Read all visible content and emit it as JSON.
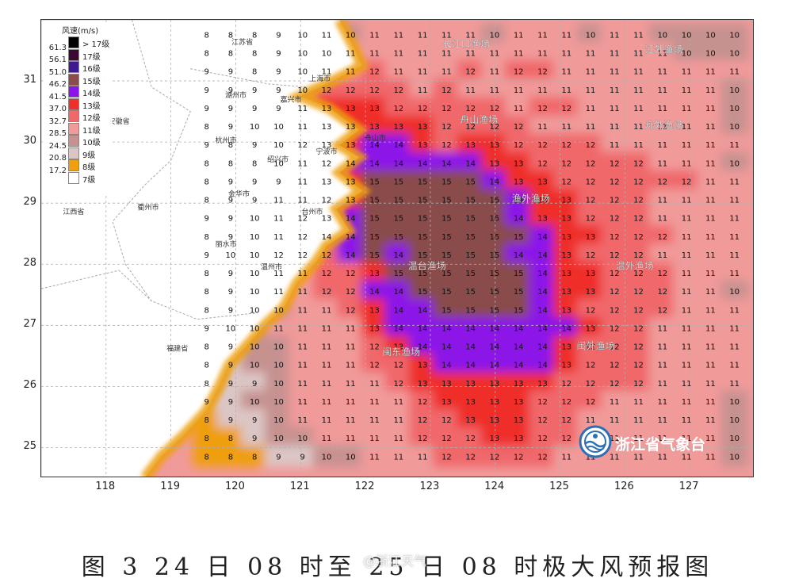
{
  "map": {
    "lon_range": [
      117.0,
      128.0
    ],
    "lat_range": [
      24.5,
      32.0
    ],
    "lon_ticks": [
      "118",
      "119",
      "120",
      "121",
      "122",
      "123",
      "124",
      "125",
      "126",
      "127"
    ],
    "lat_ticks": [
      "25",
      "26",
      "27",
      "28",
      "29",
      "30",
      "31"
    ],
    "grid": true
  },
  "legend": {
    "title": "风速(m/s)",
    "items": [
      {
        "value": "",
        "label": "> 17级",
        "color": "#000000"
      },
      {
        "value": "61.3",
        "label": "17级",
        "color": "#3a0a33"
      },
      {
        "value": "56.1",
        "label": "16级",
        "color": "#3d1a8f"
      },
      {
        "value": "51.0",
        "label": "15级",
        "color": "#8a4c4c"
      },
      {
        "value": "46.2",
        "label": "14级",
        "color": "#8c14e8"
      },
      {
        "value": "41.5",
        "label": "13级",
        "color": "#ef2f2c"
      },
      {
        "value": "37.0",
        "label": "12级",
        "color": "#f0686a"
      },
      {
        "value": "32.7",
        "label": "11级",
        "color": "#f19a9a"
      },
      {
        "value": "28.5",
        "label": "10级",
        "color": "#c69290"
      },
      {
        "value": "24.5",
        "label": "9级",
        "color": "#dcc6c5"
      },
      {
        "value": "20.8",
        "label": "8级",
        "color": "#ef9f10"
      },
      {
        "value": "17.2",
        "label": "7级",
        "color": "#ffffff"
      }
    ]
  },
  "places": [
    {
      "name": "江苏省",
      "lon": 120.1,
      "lat": 31.6
    },
    {
      "name": "上海市",
      "lon": 121.3,
      "lat": 31.0
    },
    {
      "name": "湖州市",
      "lon": 120.0,
      "lat": 30.73
    },
    {
      "name": "嘉兴市",
      "lon": 120.85,
      "lat": 30.66
    },
    {
      "name": "安徽省",
      "lon": 118.2,
      "lat": 30.3
    },
    {
      "name": "杭州市",
      "lon": 119.85,
      "lat": 29.99
    },
    {
      "name": "舟山市",
      "lon": 122.15,
      "lat": 30.03
    },
    {
      "name": "宁波市",
      "lon": 121.4,
      "lat": 29.81
    },
    {
      "name": "绍兴市",
      "lon": 120.65,
      "lat": 29.68
    },
    {
      "name": "金华市",
      "lon": 120.05,
      "lat": 29.11
    },
    {
      "name": "衢州市",
      "lon": 118.65,
      "lat": 28.89
    },
    {
      "name": "台州市",
      "lon": 121.18,
      "lat": 28.82
    },
    {
      "name": "江西省",
      "lon": 117.5,
      "lat": 28.82
    },
    {
      "name": "丽水市",
      "lon": 119.85,
      "lat": 28.29
    },
    {
      "name": "温州市",
      "lon": 120.55,
      "lat": 27.92
    },
    {
      "name": "福建省",
      "lon": 119.1,
      "lat": 26.58
    }
  ],
  "fishing_grounds": [
    {
      "name": "长江口渔场",
      "lon": 123.55,
      "lat": 31.55
    },
    {
      "name": "江外渔场",
      "lon": 126.6,
      "lat": 31.46
    },
    {
      "name": "舟山渔场",
      "lon": 123.75,
      "lat": 30.31
    },
    {
      "name": "舟外渔场",
      "lon": 126.6,
      "lat": 30.22
    },
    {
      "name": "渔外渔场",
      "lon": 124.55,
      "lat": 29.02
    },
    {
      "name": "温台渔场",
      "lon": 122.95,
      "lat": 27.92
    },
    {
      "name": "温外渔场",
      "lon": 126.15,
      "lat": 27.92
    },
    {
      "name": "闽东渔场",
      "lon": 122.55,
      "lat": 26.51
    },
    {
      "name": "闽外渔场",
      "lon": 125.55,
      "lat": 26.61
    }
  ],
  "wind_grid": {
    "lon_start": 119.55,
    "lon_step": 0.37,
    "lat_start": 31.76,
    "lat_step": -0.3,
    "rows": [
      [
        8,
        8,
        8,
        9,
        10,
        11,
        10,
        11,
        11,
        11,
        11,
        11,
        10,
        11,
        11,
        11,
        10,
        11,
        11,
        10,
        10,
        10,
        10
      ],
      [
        8,
        8,
        8,
        9,
        10,
        10,
        11,
        11,
        11,
        11,
        11,
        11,
        11,
        11,
        11,
        11,
        11,
        11,
        11,
        11,
        10,
        10,
        10
      ],
      [
        9,
        9,
        8,
        9,
        10,
        11,
        11,
        12,
        11,
        11,
        11,
        12,
        11,
        12,
        12,
        11,
        11,
        11,
        11,
        11,
        11,
        11,
        11
      ],
      [
        9,
        9,
        9,
        9,
        10,
        12,
        12,
        12,
        12,
        11,
        12,
        11,
        11,
        11,
        11,
        11,
        11,
        11,
        11,
        11,
        11,
        11,
        10
      ],
      [
        9,
        9,
        9,
        9,
        11,
        13,
        13,
        13,
        12,
        12,
        12,
        12,
        12,
        11,
        12,
        12,
        11,
        11,
        11,
        11,
        11,
        11,
        10
      ],
      [
        8,
        9,
        10,
        10,
        11,
        13,
        13,
        13,
        13,
        13,
        12,
        12,
        12,
        12,
        11,
        11,
        11,
        11,
        11,
        11,
        11,
        11,
        10
      ],
      [
        9,
        8,
        9,
        10,
        12,
        13,
        13,
        14,
        14,
        13,
        12,
        13,
        13,
        12,
        12,
        12,
        12,
        11,
        11,
        11,
        11,
        11,
        11
      ],
      [
        8,
        8,
        8,
        10,
        11,
        12,
        14,
        14,
        14,
        14,
        14,
        14,
        13,
        13,
        12,
        12,
        12,
        12,
        12,
        11,
        11,
        11,
        10
      ],
      [
        8,
        9,
        9,
        9,
        11,
        13,
        13,
        15,
        15,
        15,
        15,
        15,
        14,
        13,
        13,
        12,
        12,
        12,
        12,
        12,
        12,
        11,
        11
      ],
      [
        8,
        9,
        9,
        11,
        11,
        12,
        13,
        15,
        15,
        15,
        15,
        15,
        15,
        14,
        13,
        13,
        12,
        12,
        12,
        11,
        11,
        11,
        11
      ],
      [
        9,
        9,
        10,
        11,
        12,
        13,
        14,
        15,
        15,
        15,
        15,
        15,
        15,
        14,
        13,
        13,
        12,
        12,
        12,
        11,
        11,
        11,
        11
      ],
      [
        8,
        9,
        10,
        11,
        12,
        14,
        14,
        15,
        15,
        15,
        15,
        15,
        15,
        15,
        14,
        13,
        13,
        12,
        12,
        12,
        11,
        11,
        11
      ],
      [
        9,
        10,
        10,
        12,
        12,
        12,
        14,
        15,
        14,
        15,
        15,
        15,
        15,
        14,
        14,
        13,
        12,
        12,
        12,
        11,
        11,
        11,
        11
      ],
      [
        8,
        9,
        10,
        11,
        11,
        12,
        12,
        13,
        15,
        15,
        15,
        15,
        15,
        15,
        14,
        13,
        13,
        12,
        12,
        12,
        11,
        11,
        11
      ],
      [
        8,
        9,
        10,
        11,
        11,
        12,
        12,
        14,
        14,
        15,
        15,
        15,
        15,
        15,
        14,
        13,
        13,
        12,
        12,
        12,
        11,
        11,
        10
      ],
      [
        8,
        9,
        10,
        10,
        11,
        11,
        12,
        13,
        14,
        14,
        15,
        15,
        15,
        15,
        14,
        13,
        12,
        12,
        12,
        12,
        11,
        11,
        11
      ],
      [
        9,
        10,
        10,
        11,
        11,
        11,
        11,
        13,
        14,
        14,
        14,
        14,
        14,
        14,
        14,
        14,
        13,
        12,
        12,
        11,
        11,
        11,
        11
      ],
      [
        8,
        9,
        10,
        10,
        11,
        11,
        11,
        12,
        13,
        14,
        14,
        14,
        14,
        14,
        14,
        13,
        12,
        12,
        12,
        11,
        11,
        11,
        11
      ],
      [
        8,
        9,
        10,
        10,
        11,
        11,
        11,
        12,
        12,
        13,
        14,
        14,
        14,
        14,
        14,
        13,
        12,
        12,
        12,
        11,
        11,
        11,
        11
      ],
      [
        8,
        9,
        9,
        10,
        11,
        11,
        11,
        11,
        12,
        13,
        13,
        13,
        13,
        13,
        13,
        12,
        12,
        12,
        12,
        11,
        11,
        11,
        11
      ],
      [
        9,
        9,
        10,
        10,
        11,
        11,
        11,
        11,
        11,
        12,
        13,
        13,
        13,
        13,
        12,
        12,
        12,
        11,
        11,
        11,
        11,
        11,
        10
      ],
      [
        8,
        9,
        9,
        10,
        11,
        11,
        11,
        11,
        11,
        12,
        12,
        13,
        13,
        13,
        12,
        12,
        11,
        11,
        11,
        11,
        11,
        11,
        10
      ],
      [
        8,
        8,
        9,
        10,
        10,
        11,
        11,
        11,
        11,
        12,
        12,
        12,
        13,
        13,
        12,
        12,
        11,
        11,
        11,
        11,
        11,
        11,
        10
      ],
      [
        8,
        8,
        8,
        9,
        9,
        10,
        10,
        11,
        11,
        11,
        12,
        12,
        12,
        12,
        12,
        11,
        11,
        11,
        11,
        11,
        11,
        11,
        10
      ]
    ]
  },
  "logo_text": "浙江省气象台",
  "caption": "图 3  24 日 08 时至 25 日 08 时极大风预报图",
  "watermark": "@浙江天气"
}
